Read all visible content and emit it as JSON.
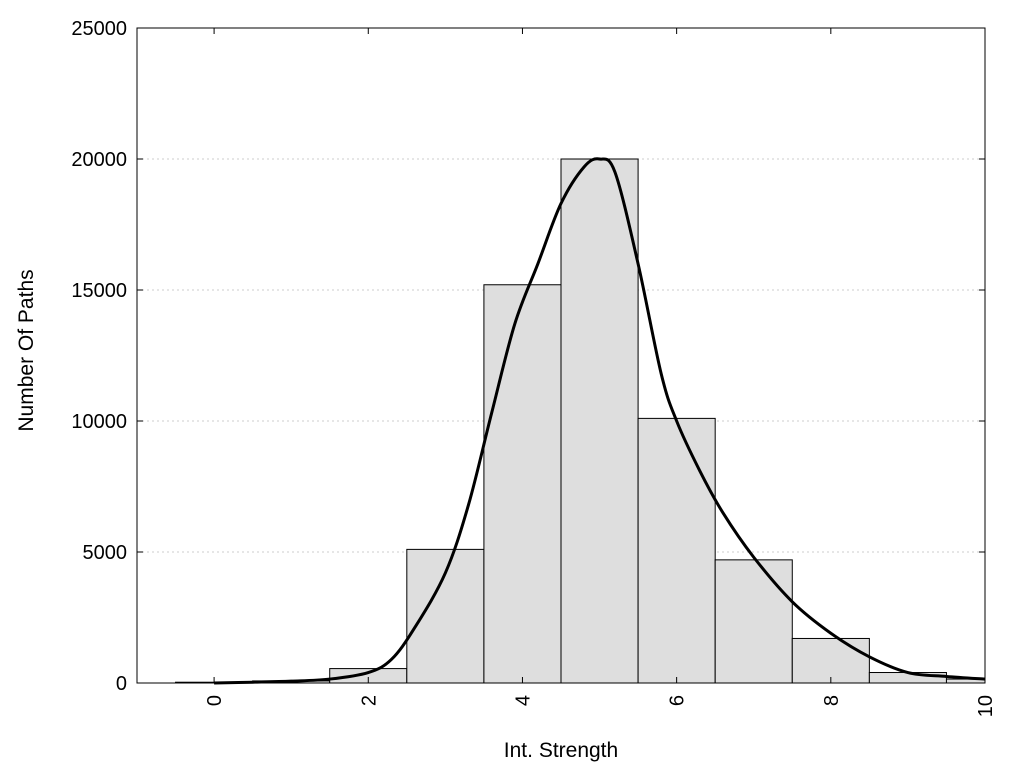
{
  "chart_data": {
    "type": "bar",
    "title": "",
    "xlabel": "Int. Strength",
    "ylabel": "Number Of Paths",
    "xlim": [
      -1,
      10
    ],
    "ylim": [
      0,
      25000
    ],
    "x_ticks": [
      0,
      2,
      4,
      6,
      8,
      10
    ],
    "y_ticks": [
      0,
      5000,
      10000,
      15000,
      20000,
      25000
    ],
    "grid": "horizontal dotted",
    "legend": "none",
    "bin_width": 1,
    "bars": {
      "x": [
        0,
        1,
        2,
        3,
        4,
        5,
        6,
        7,
        8,
        9,
        10
      ],
      "values": [
        30,
        80,
        550,
        5100,
        15200,
        20000,
        10100,
        4700,
        1700,
        400,
        150
      ]
    },
    "curve": {
      "x": [
        0,
        0.5,
        1,
        1.5,
        2,
        2.3,
        2.6,
        3,
        3.3,
        3.6,
        3.9,
        4.2,
        4.5,
        4.8,
        5,
        5.2,
        5.5,
        5.8,
        6,
        6.3,
        6.6,
        7,
        7.5,
        8,
        8.5,
        9,
        9.5,
        10
      ],
      "values": [
        0,
        30,
        70,
        150,
        400,
        900,
        2100,
        4200,
        6800,
        10300,
        13700,
        16000,
        18300,
        19700,
        20000,
        19500,
        16000,
        11800,
        10000,
        8100,
        6500,
        4800,
        3100,
        1900,
        1000,
        400,
        250,
        150
      ]
    },
    "colors": {
      "bar_fill": "#dedede",
      "bar_stroke": "#000000",
      "curve": "#000000",
      "grid": "#cccccc"
    }
  }
}
